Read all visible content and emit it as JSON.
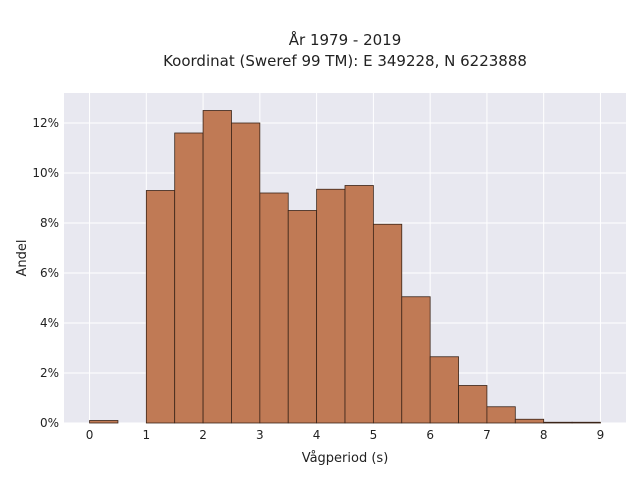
{
  "chart_data": {
    "type": "bar",
    "title_line1": "År 1979 - 2019",
    "title_line2": "Koordinat (Sweref 99 TM): E 349228, N 6223888",
    "xlabel": "Vågperiod (s)",
    "ylabel": "Andel",
    "xlim": [
      -0.45,
      9.45
    ],
    "ylim": [
      0,
      13.2
    ],
    "x_ticks": [
      0,
      1,
      2,
      3,
      4,
      5,
      6,
      7,
      8,
      9
    ],
    "y_ticks": [
      0,
      2,
      4,
      6,
      8,
      10,
      12
    ],
    "y_tick_labels": [
      "0%",
      "2%",
      "4%",
      "6%",
      "8%",
      "10%",
      "12%"
    ],
    "bin_width": 0.5,
    "bin_starts": [
      0,
      0.5,
      1,
      1.5,
      2,
      2.5,
      3,
      3.5,
      4,
      4.5,
      5,
      5.5,
      6,
      6.5,
      7,
      7.5,
      8,
      8.5
    ],
    "values": [
      0.1,
      0,
      9.3,
      11.6,
      12.5,
      12.0,
      9.2,
      8.5,
      9.35,
      9.5,
      7.95,
      5.05,
      2.65,
      1.5,
      0.65,
      0.15,
      0.03,
      0.03
    ],
    "bar_color": "#c07a55",
    "edge_color": "#3a2418",
    "background_color": "#e8e8f0",
    "grid": true
  }
}
